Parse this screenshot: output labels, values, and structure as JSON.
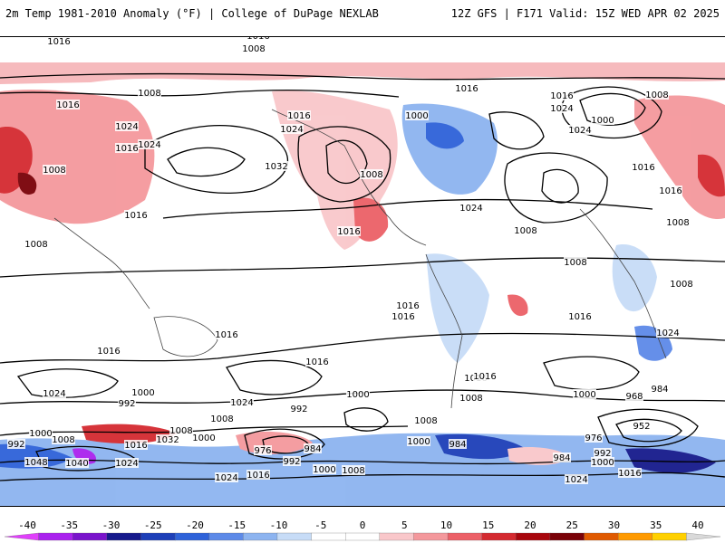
{
  "header": {
    "left_title": "2m Temp 1981-2010 Anomaly (°F) | College of DuPage NEXLAB",
    "right_title": "12Z GFS | F171 Valid: 15Z WED APR 02 2025"
  },
  "colorbar": {
    "ticks": [
      "-40",
      "-35",
      "-30",
      "-25",
      "-20",
      "-15",
      "-10",
      "-5",
      "0",
      "5",
      "10",
      "15",
      "20",
      "25",
      "30",
      "35",
      "40"
    ],
    "colors": [
      "#e040fb",
      "#aa22ee",
      "#7a14cc",
      "#161a8c",
      "#1d3fb8",
      "#2e62d9",
      "#5d8ae8",
      "#8db4f0",
      "#c7dcf7",
      "#ffffff",
      "#ffffff",
      "#f9c7ca",
      "#f4989c",
      "#ec6067",
      "#d42a30",
      "#a8060d",
      "#7a0208",
      "#e05a00",
      "#ff9a00",
      "#ffd000",
      "#d9d9d9"
    ]
  },
  "map": {
    "isobar_labels": [
      {
        "text": "1016"
      },
      {
        "text": "1008"
      },
      {
        "text": "1016"
      },
      {
        "text": "1008"
      },
      {
        "text": "1024"
      },
      {
        "text": "1016"
      },
      {
        "text": "1016"
      },
      {
        "text": "1008"
      },
      {
        "text": "1024"
      },
      {
        "text": "1032"
      },
      {
        "text": "1016"
      },
      {
        "text": "1016"
      },
      {
        "text": "1008"
      },
      {
        "text": "1016"
      },
      {
        "text": "1024"
      },
      {
        "text": "1000"
      },
      {
        "text": "1008"
      },
      {
        "text": "1016"
      },
      {
        "text": "1016"
      },
      {
        "text": "1024"
      },
      {
        "text": "1008"
      },
      {
        "text": "1000"
      },
      {
        "text": "1024"
      },
      {
        "text": "1016"
      },
      {
        "text": "1016"
      },
      {
        "text": "1008"
      },
      {
        "text": "1008"
      },
      {
        "text": "1008"
      },
      {
        "text": "1016"
      },
      {
        "text": "1016"
      },
      {
        "text": "1016"
      },
      {
        "text": "1016"
      },
      {
        "text": "1024"
      },
      {
        "text": "1016"
      },
      {
        "text": "1016"
      },
      {
        "text": "1008"
      },
      {
        "text": "1016"
      },
      {
        "text": "1024"
      },
      {
        "text": "1008"
      },
      {
        "text": "992"
      },
      {
        "text": "1000"
      },
      {
        "text": "1024"
      },
      {
        "text": "1000"
      },
      {
        "text": "992"
      },
      {
        "text": "1008"
      },
      {
        "text": "1016"
      },
      {
        "text": "1008"
      },
      {
        "text": "1000"
      },
      {
        "text": "968"
      },
      {
        "text": "984"
      },
      {
        "text": "952"
      },
      {
        "text": "1000"
      },
      {
        "text": "1024"
      },
      {
        "text": "984"
      },
      {
        "text": "1032"
      },
      {
        "text": "1008"
      },
      {
        "text": "1016"
      },
      {
        "text": "1000"
      },
      {
        "text": "976"
      },
      {
        "text": "984"
      },
      {
        "text": "992"
      },
      {
        "text": "1048"
      },
      {
        "text": "1040"
      },
      {
        "text": "1024"
      },
      {
        "text": "1024"
      },
      {
        "text": "1016"
      },
      {
        "text": "1000"
      },
      {
        "text": "1008"
      },
      {
        "text": "1000"
      },
      {
        "text": "976"
      },
      {
        "text": "992"
      },
      {
        "text": "984"
      },
      {
        "text": "1000"
      },
      {
        "text": "1008"
      },
      {
        "text": "1016"
      },
      {
        "text": "1024"
      },
      {
        "text": "992"
      }
    ]
  }
}
